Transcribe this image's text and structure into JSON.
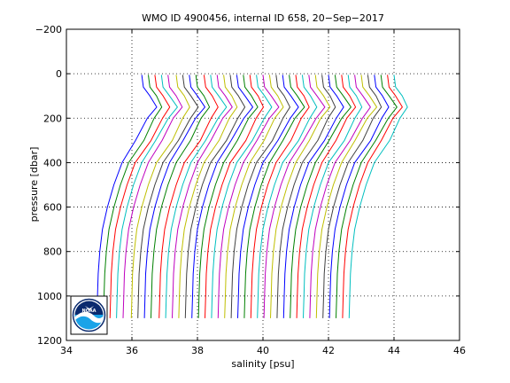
{
  "chart_data": {
    "type": "line",
    "title": "WMO ID 4900456, internal ID 658, 20−Sep−2017",
    "xlabel": "salinity [psu]",
    "ylabel": "pressure [dbar]",
    "xlim": [
      34,
      46
    ],
    "ylim": [
      -200,
      1200
    ],
    "y_reversed": true,
    "grid": true,
    "grid_style": "dotted",
    "xticks": [
      34,
      36,
      38,
      40,
      42,
      44,
      46
    ],
    "yticks": [
      -200,
      0,
      200,
      400,
      600,
      800,
      1000,
      1200
    ],
    "xtick_labels": [
      "34",
      "36",
      "38",
      "40",
      "42",
      "44",
      "46"
    ],
    "ytick_labels": [
      "−200",
      "0",
      "200",
      "400",
      "600",
      "800",
      "1000",
      "1200"
    ],
    "color_cycle": [
      "#0000ff",
      "#008000",
      "#ff0000",
      "#00bfbf",
      "#bf00bf",
      "#bfbf00",
      "#404040"
    ],
    "profile_shape": {
      "pressure": [
        5,
        60,
        100,
        150,
        200,
        300,
        400,
        500,
        600,
        700,
        800,
        900,
        1000,
        1100
      ],
      "salinity_offset": [
        0.0,
        0.05,
        0.25,
        0.45,
        0.2,
        -0.15,
        -0.6,
        -0.85,
        -1.05,
        -1.2,
        -1.28,
        -1.33,
        -1.35,
        -1.37
      ]
    },
    "series": [
      {
        "surface_salinity": 36.3
      },
      {
        "surface_salinity": 36.5
      },
      {
        "surface_salinity": 36.7
      },
      {
        "surface_salinity": 36.9
      },
      {
        "surface_salinity": 37.1
      },
      {
        "surface_salinity": 37.35
      },
      {
        "surface_salinity": 37.55
      },
      {
        "surface_salinity": 37.75
      },
      {
        "surface_salinity": 37.95
      },
      {
        "surface_salinity": 38.2
      },
      {
        "surface_salinity": 38.4
      },
      {
        "surface_salinity": 38.6
      },
      {
        "surface_salinity": 38.8
      },
      {
        "surface_salinity": 39.0
      },
      {
        "surface_salinity": 39.2
      },
      {
        "surface_salinity": 39.4
      },
      {
        "surface_salinity": 39.6
      },
      {
        "surface_salinity": 39.8
      },
      {
        "surface_salinity": 40.0
      },
      {
        "surface_salinity": 40.2
      },
      {
        "surface_salinity": 40.4
      },
      {
        "surface_salinity": 40.6
      },
      {
        "surface_salinity": 40.8
      },
      {
        "surface_salinity": 41.0
      },
      {
        "surface_salinity": 41.2
      },
      {
        "surface_salinity": 41.4
      },
      {
        "surface_salinity": 41.6
      },
      {
        "surface_salinity": 41.8
      },
      {
        "surface_salinity": 42.0
      },
      {
        "surface_salinity": 42.2
      },
      {
        "surface_salinity": 42.4
      },
      {
        "surface_salinity": 42.6
      },
      {
        "surface_salinity": 42.8
      },
      {
        "surface_salinity": 43.0
      },
      {
        "surface_salinity": 43.2
      },
      {
        "surface_salinity": 43.4
      },
      {
        "surface_salinity": 43.6
      },
      {
        "surface_salinity": 43.8
      },
      {
        "surface_salinity": 44.0
      }
    ]
  },
  "logo": {
    "text": "NOAA",
    "colors": {
      "outer": "#ffffff",
      "sky": "#0a2a6e",
      "sea": "#1aa3e8",
      "wave": "#ffffff",
      "bird": "#ffffff"
    }
  }
}
